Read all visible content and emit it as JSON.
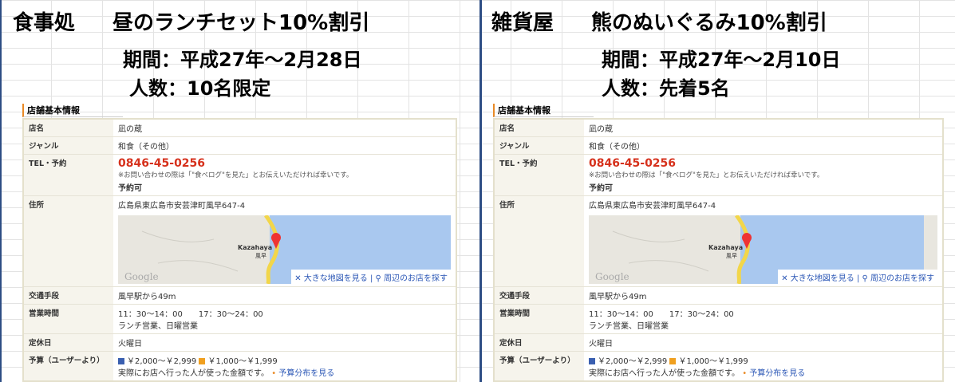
{
  "panels": [
    {
      "shop_type": "食事処",
      "offer": "昼のランチセット10%割引",
      "period": "期間：平成27年～2月28日",
      "count": "人数：10名限定",
      "section_title": "店舗基本情報",
      "store": {
        "name_label": "店名",
        "name": "凪の蔵",
        "genre_label": "ジャンル",
        "genre": "和食（その他）",
        "tel_label": "TEL・予約",
        "tel": "0846-45-0256",
        "tel_note": "※お問い合わせの際は「\"食べログ\"を見た」とお伝えいただければ幸いです。",
        "reservation": "予約可",
        "address_label": "住所",
        "address": "広島県東広島市安芸津町風早647-4",
        "map": {
          "place": "Kazahaya",
          "place_ja": "風早",
          "logo": "Google",
          "big_map": "大きな地図を見る",
          "nearby": "周辺のお店を探す"
        },
        "access_label": "交通手段",
        "access": "風早駅から49m",
        "hours_label": "営業時間",
        "hours": "11：30～14：00　　17：30～24：00",
        "hours_note": "ランチ営業、日曜営業",
        "holiday_label": "定休日",
        "holiday": "火曜日",
        "budget_label": "予算（ユーザーより）",
        "budget_dinner": "￥2,000～￥2,999",
        "budget_lunch": "￥1,000～￥1,999",
        "budget_note": "実際にお店へ行った人が使った金額です。",
        "budget_link": "予算分布を見る"
      }
    },
    {
      "shop_type": "雑貨屋",
      "offer": "熊のぬいぐるみ10%割引",
      "period": "期間：平成27年～2月10日",
      "count": "人数：先着5名",
      "section_title": "店舗基本情報",
      "store": {
        "name_label": "店名",
        "name": "凪の蔵",
        "genre_label": "ジャンル",
        "genre": "和食（その他）",
        "tel_label": "TEL・予約",
        "tel": "0846-45-0256",
        "tel_note": "※お問い合わせの際は「\"食べログ\"を見た」とお伝えいただければ幸いです。",
        "reservation": "予約可",
        "address_label": "住所",
        "address": "広島県東広島市安芸津町風早647-4",
        "map": {
          "place": "Kazahaya",
          "place_ja": "風早",
          "logo": "Google",
          "big_map": "大きな地図を見る",
          "nearby": "周辺のお店を探す"
        },
        "access_label": "交通手段",
        "access": "風早駅から49m",
        "hours_label": "営業時間",
        "hours": "11：30～14：00　　17：30～24：00",
        "hours_note": "ランチ営業、日曜営業",
        "holiday_label": "定休日",
        "holiday": "火曜日",
        "budget_label": "予算（ユーザーより）",
        "budget_dinner": "￥2,000～￥2,999",
        "budget_lunch": "￥1,000～￥1,999",
        "budget_note": "実際にお店へ行った人が使った金額です。",
        "budget_link": "予算分布を見る"
      }
    }
  ]
}
